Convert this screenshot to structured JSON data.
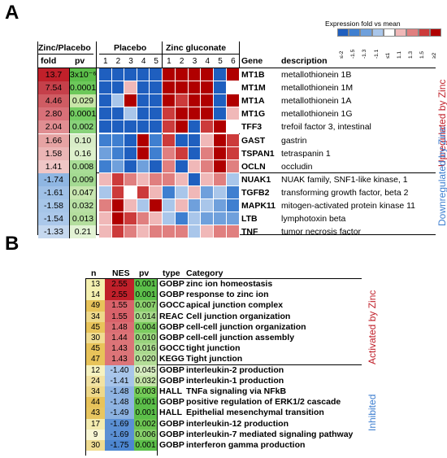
{
  "panelA": {
    "letter": "A",
    "legend_title": "Expression fold vs mean",
    "legend_ticks": [
      "≤-2",
      "-1.5",
      "-1.3",
      "-1.1",
      "≤1",
      "1.1",
      "1.3",
      "1.5",
      "≥2"
    ],
    "legend_colors": [
      "#1f5fbf",
      "#3f7fd0",
      "#6fa0dc",
      "#a9c6ea",
      "#ffffff",
      "#f0b8b8",
      "#e07f7f",
      "#cc3b3b",
      "#b00000"
    ],
    "header_zinc_placebo": "Zinc/Placebo",
    "col_fold": "fold",
    "col_pv": "pv",
    "group_placebo": "Placebo",
    "group_zinc": "Zinc gluconate",
    "placebo_cols": [
      "1",
      "2",
      "3",
      "4",
      "5"
    ],
    "zinc_cols": [
      "1",
      "2",
      "3",
      "4",
      "5",
      "6"
    ],
    "col_gene": "Gene",
    "col_desc": "description",
    "up_label": "Upregulated by Zinc",
    "down_label": "Downregulated by Zinc",
    "rows": [
      {
        "fold": "13.7",
        "pv": "3x10⁻⁶",
        "gene": "MT1B",
        "desc": "metallothionein 1B",
        "p": [
          "#1f5fbf",
          "#1f5fbf",
          "#1f5fbf",
          "#1f5fbf",
          "#1f5fbf"
        ],
        "z": [
          "#b00000",
          "#b00000",
          "#b00000",
          "#b00000",
          "#1f5fbf",
          "#b00000"
        ]
      },
      {
        "fold": "7.54",
        "pv": "0.0001",
        "gene": "MT1M",
        "desc": "metallothionein 1M",
        "p": [
          "#1f5fbf",
          "#1f5fbf",
          "#f0b8b8",
          "#1f5fbf",
          "#1f5fbf"
        ],
        "z": [
          "#b00000",
          "#b00000",
          "#b00000",
          "#b00000",
          "#1f5fbf",
          "#ffffff"
        ]
      },
      {
        "fold": "4.46",
        "pv": "0.029",
        "gene": "MT1A",
        "desc": "metallothionein 1A",
        "p": [
          "#1f5fbf",
          "#a9c6ea",
          "#b00000",
          "#1f5fbf",
          "#1f5fbf"
        ],
        "z": [
          "#b00000",
          "#cc3b3b",
          "#b00000",
          "#b00000",
          "#1f5fbf",
          "#b00000"
        ]
      },
      {
        "fold": "2.80",
        "pv": "0.0001",
        "gene": "MT1G",
        "desc": "metallothionein 1G",
        "p": [
          "#1f5fbf",
          "#1f5fbf",
          "#a9c6ea",
          "#1f5fbf",
          "#1f5fbf"
        ],
        "z": [
          "#cc3b3b",
          "#b00000",
          "#b00000",
          "#b00000",
          "#1f5fbf",
          "#f0b8b8"
        ]
      },
      {
        "fold": "2.04",
        "pv": "0.002",
        "gene": "TFF3",
        "desc": "trefoil factor 3, intestinal",
        "p": [
          "#1f5fbf",
          "#1f5fbf",
          "#1f5fbf",
          "#1f5fbf",
          "#1f5fbf"
        ],
        "z": [
          "#cc3b3b",
          "#b00000",
          "#1f5fbf",
          "#cc3b3b",
          "#b00000",
          "#ffffff"
        ]
      },
      {
        "fold": "1.66",
        "pv": "0.10",
        "gene": "GAST",
        "desc": "gastrin",
        "p": [
          "#3f7fd0",
          "#3f7fd0",
          "#1f5fbf",
          "#b00000",
          "#3f7fd0"
        ],
        "z": [
          "#cc3b3b",
          "#1f5fbf",
          "#1f5fbf",
          "#f0b8b8",
          "#b00000",
          "#cc3b3b"
        ]
      },
      {
        "fold": "1.58",
        "pv": "0.16",
        "gene": "TSPAN1",
        "desc": "tetraspanin 1",
        "p": [
          "#6fa0dc",
          "#3f7fd0",
          "#1f5fbf",
          "#b00000",
          "#3f7fd0"
        ],
        "z": [
          "#e07f7f",
          "#cc3b3b",
          "#1f5fbf",
          "#e07f7f",
          "#b00000",
          "#cc3b3b"
        ]
      },
      {
        "fold": "1.41",
        "pv": "0.008",
        "gene": "OCLN",
        "desc": "occludin",
        "p": [
          "#3f7fd0",
          "#6fa0dc",
          "#1f5fbf",
          "#6fa0dc",
          "#1f5fbf"
        ],
        "z": [
          "#e07f7f",
          "#1f5fbf",
          "#f0b8b8",
          "#e07f7f",
          "#b00000",
          "#e07f7f"
        ]
      },
      {
        "fold": "-1.74",
        "pv": "0.009",
        "gene": "NUAK1",
        "desc": "NUAK family, SNF1-like kinase, 1",
        "p": [
          "#f0b8b8",
          "#cc3b3b",
          "#e07f7f",
          "#f0b8b8",
          "#e07f7f"
        ],
        "z": [
          "#e07f7f",
          "#f0b8b8",
          "#1f5fbf",
          "#f0b8b8",
          "#e07f7f",
          "#a9c6ea"
        ]
      },
      {
        "fold": "-1.61",
        "pv": "0.047",
        "gene": "TGFB2",
        "desc": "transforming growth factor, beta 2",
        "p": [
          "#a9c6ea",
          "#cc3b3b",
          "#ffffff",
          "#cc3b3b",
          "#f0b8b8"
        ],
        "z": [
          "#3f7fd0",
          "#a9c6ea",
          "#f0b8b8",
          "#6fa0dc",
          "#a9c6ea",
          "#3f7fd0"
        ]
      },
      {
        "fold": "-1.58",
        "pv": "0.032",
        "gene": "MAPK11",
        "desc": "mitogen-activated protein kinase 11",
        "p": [
          "#e07f7f",
          "#b00000",
          "#f0b8b8",
          "#a9c6ea",
          "#b00000"
        ],
        "z": [
          "#a9c6ea",
          "#f0b8b8",
          "#6fa0dc",
          "#a9c6ea",
          "#6fa0dc",
          "#3f7fd0"
        ]
      },
      {
        "fold": "-1.54",
        "pv": "0.013",
        "gene": "LTB",
        "desc": "lymphotoxin beta",
        "p": [
          "#f0b8b8",
          "#b00000",
          "#cc3b3b",
          "#e07f7f",
          "#f0b8b8"
        ],
        "z": [
          "#a9c6ea",
          "#3f7fd0",
          "#a9c6ea",
          "#6fa0dc",
          "#6fa0dc",
          "#6fa0dc"
        ]
      },
      {
        "fold": "-1.33",
        "pv": "0.21",
        "gene": "TNF",
        "desc": "tumor necrosis factor",
        "p": [
          "#f0b8b8",
          "#cc3b3b",
          "#e07f7f",
          "#f0b8b8",
          "#e07f7f"
        ],
        "z": [
          "#e07f7f",
          "#e07f7f",
          "#a9c6ea",
          "#f0b8b8",
          "#e07f7f",
          "#e07f7f"
        ]
      }
    ],
    "fold_colors": [
      "#c0202a",
      "#c5404a",
      "#cf5c63",
      "#d87078",
      "#e08e92",
      "#e6a3a3",
      "#ebb5b5",
      "#efc6c6",
      "#8fb6e2",
      "#9fc0e6",
      "#a6c5e8",
      "#abc8ea",
      "#c5d8ef"
    ],
    "pv_colors": [
      "#5cbf4a",
      "#6cc85a",
      "#c8e6a8",
      "#74cc62",
      "#88d27a",
      "#d9edc8",
      "#ddf0cc",
      "#a8dc96",
      "#a4da92",
      "#c8e6b0",
      "#b8e0a4",
      "#b4de9e",
      "#e2f2d4"
    ]
  },
  "panelB": {
    "letter": "B",
    "col_n": "n",
    "col_nes": "NES",
    "col_pv": "pv",
    "col_type": "type",
    "col_category": "Category",
    "activated_label": "Activated by Zinc",
    "inhibited_label": "Inhibited",
    "rows": [
      {
        "n": "13",
        "nes": "2.55",
        "pv": "0.001",
        "type": "GOBP",
        "cat": "zinc ion homeostasis",
        "nc": "#f5f0b0",
        "ec": "#c0202a",
        "pc": "#5cbf4a"
      },
      {
        "n": "14",
        "nes": "2.55",
        "pv": "0.001",
        "type": "GOBP",
        "cat": "response to zinc ion",
        "nc": "#f5f0b0",
        "ec": "#c0202a",
        "pc": "#5cbf4a"
      },
      {
        "n": "49",
        "nes": "1.55",
        "pv": "0.007",
        "type": "GOCC",
        "cat": "apical junction complex",
        "nc": "#e8c35a",
        "ec": "#d8626a",
        "pc": "#8ccf6e"
      },
      {
        "n": "34",
        "nes": "1.55",
        "pv": "0.014",
        "type": "REAC",
        "cat": "Cell junction organization",
        "nc": "#eed88a",
        "ec": "#d8626a",
        "pc": "#a6d88a"
      },
      {
        "n": "45",
        "nes": "1.48",
        "pv": "0.004",
        "type": "GOBP",
        "cat": "cell-cell junction organization",
        "nc": "#e8c35a",
        "ec": "#da6e74",
        "pc": "#7ccc60"
      },
      {
        "n": "30",
        "nes": "1.44",
        "pv": "0.010",
        "type": "GOBP",
        "cat": "cell-cell junction assembly",
        "nc": "#f0dc92",
        "ec": "#dc7478",
        "pc": "#9ad47e"
      },
      {
        "n": "45",
        "nes": "1.43",
        "pv": "0.016",
        "type": "GOCC",
        "cat": "tight junction",
        "nc": "#e8c35a",
        "ec": "#dc7478",
        "pc": "#aad98e"
      },
      {
        "n": "47",
        "nes": "1.43",
        "pv": "0.020",
        "type": "KEGG",
        "cat": "Tight junction",
        "nc": "#e8c35a",
        "ec": "#dc7478",
        "pc": "#b4dd98"
      },
      {
        "n": "12",
        "nes": "-1.40",
        "pv": "0.045",
        "type": "GOBP",
        "cat": "interleukin-2 production",
        "nc": "#f6f2c0",
        "ec": "#a9c6ea",
        "pc": "#d6ecc0"
      },
      {
        "n": "24",
        "nes": "-1.41",
        "pv": "0.032",
        "type": "GOBP",
        "cat": "interleukin-1 production",
        "nc": "#f2e2a2",
        "ec": "#a6c4ea",
        "pc": "#c4e4a8"
      },
      {
        "n": "34",
        "nes": "-1.48",
        "pv": "0.003",
        "type": "HALL",
        "cat": "TNFa signaling via NFkB",
        "nc": "#eed88a",
        "ec": "#8fb4e2",
        "pc": "#74cc58"
      },
      {
        "n": "44",
        "nes": "-1.48",
        "pv": "0.001",
        "type": "GOBP",
        "cat": "positive regulation of ERK1/2 cascade",
        "nc": "#e8c35a",
        "ec": "#8fb4e2",
        "pc": "#5cbf4a"
      },
      {
        "n": "43",
        "nes": "-1.49",
        "pv": "0.001",
        "type": "HALL",
        "cat": "Epithelial mesenchymal transition",
        "nc": "#e8c660",
        "ec": "#8cb2e0",
        "pc": "#5cbf4a"
      },
      {
        "n": "17",
        "nes": "-1.69",
        "pv": "0.002",
        "type": "GOBP",
        "cat": "interleukin-12 production",
        "nc": "#f4ecb0",
        "ec": "#5b90d4",
        "pc": "#6cc452"
      },
      {
        "n": "9",
        "nes": "-1.69",
        "pv": "0.006",
        "type": "GOBP",
        "cat": "interleukin-7 mediated signaling pathway",
        "nc": "#f8f6d4",
        "ec": "#5b90d4",
        "pc": "#86ce6a"
      },
      {
        "n": "30",
        "nes": "-1.75",
        "pv": "0.001",
        "type": "GOBP",
        "cat": "interferon gamma production",
        "nc": "#f0dc92",
        "ec": "#4d86d0",
        "pc": "#5cbf4a"
      }
    ]
  }
}
